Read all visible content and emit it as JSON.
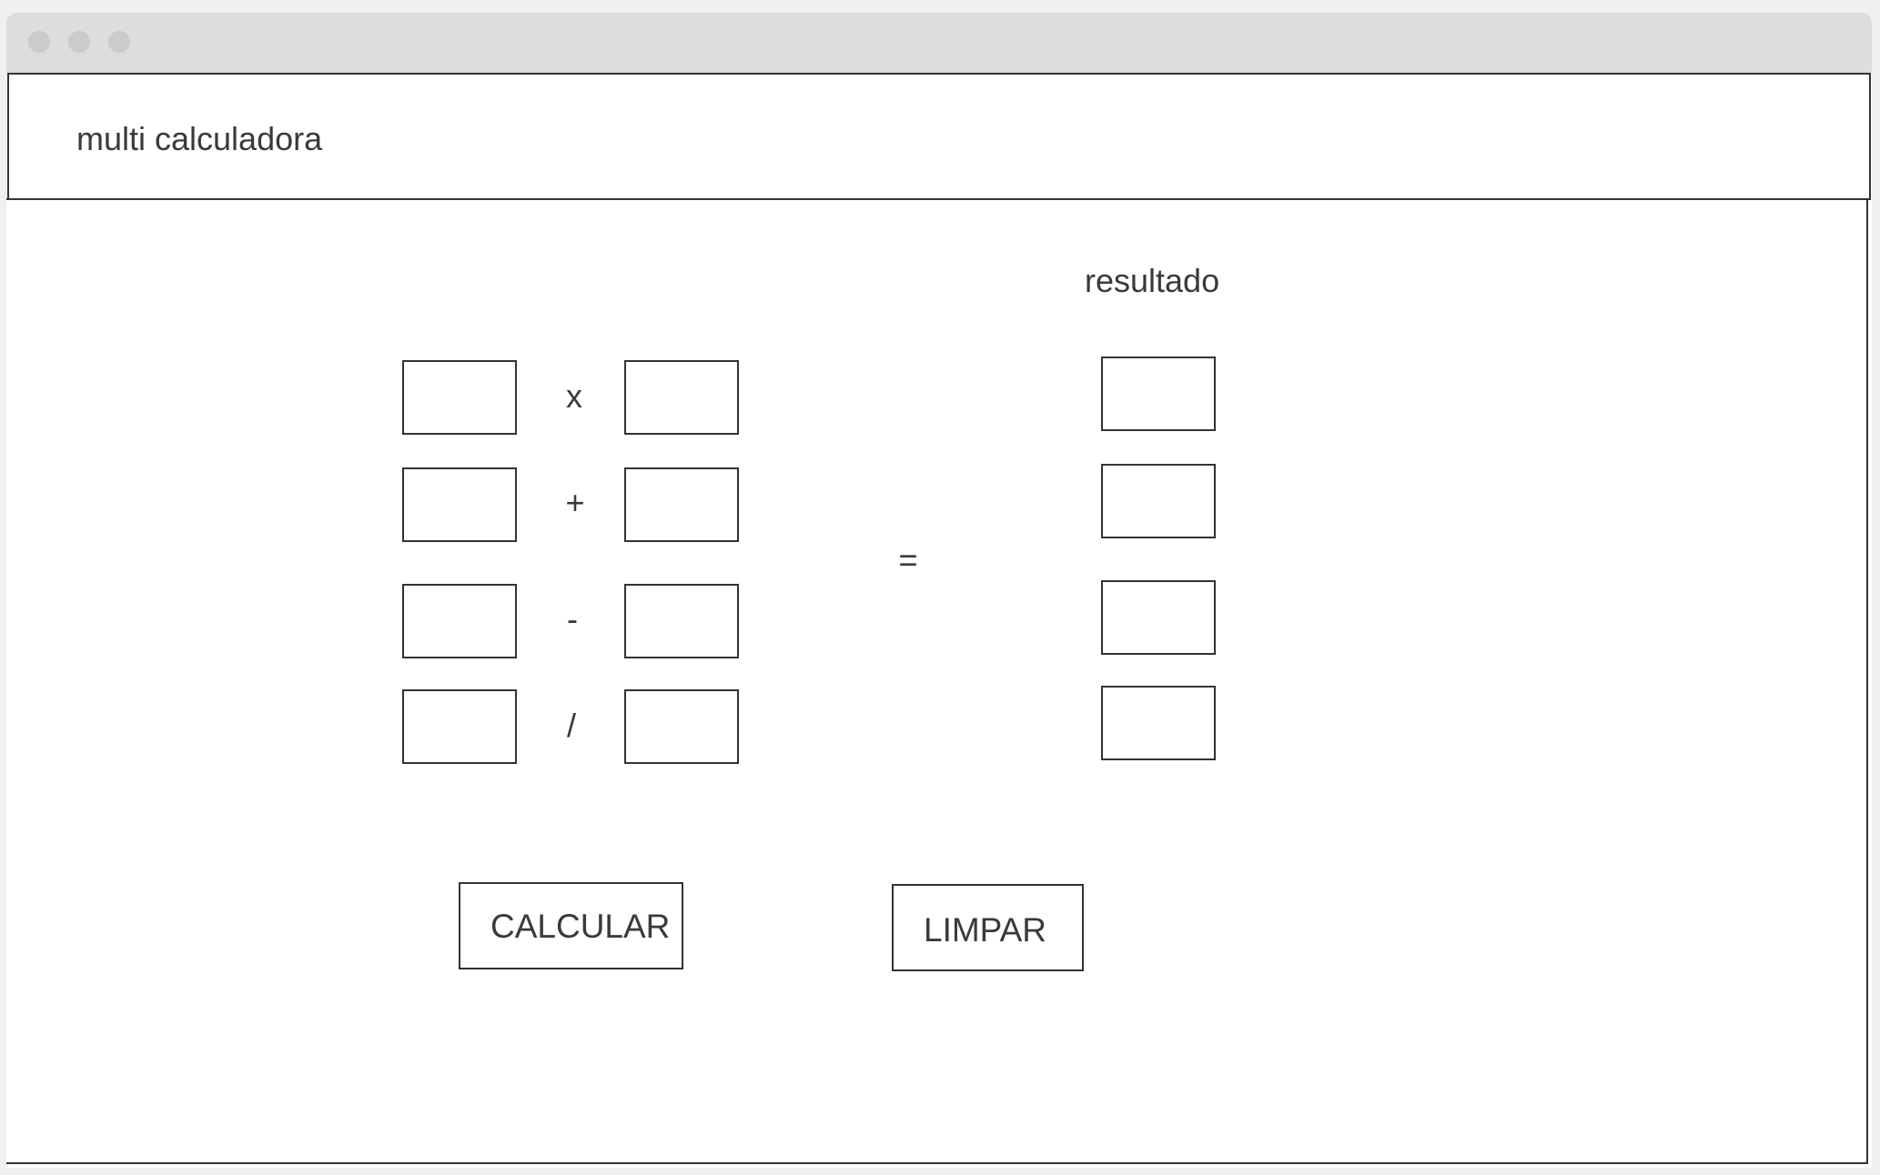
{
  "window": {
    "title_dots": [
      "close",
      "minimize",
      "maximize"
    ]
  },
  "header": {
    "title": "multi calculadora"
  },
  "calculator": {
    "result_label": "resultado",
    "equals_sign": "=",
    "rows": [
      {
        "operator": "x",
        "a": "",
        "b": "",
        "result": ""
      },
      {
        "operator": "+",
        "a": "",
        "b": "",
        "result": ""
      },
      {
        "operator": "-",
        "a": "",
        "b": "",
        "result": ""
      },
      {
        "operator": "/",
        "a": "",
        "b": "",
        "result": ""
      }
    ]
  },
  "buttons": {
    "calculate_label": "CALCULAR",
    "clear_label": "LIMPAR"
  },
  "colors": {
    "border": "#333333",
    "titlebar": "#dddddd",
    "text": "#3a3a3a"
  }
}
